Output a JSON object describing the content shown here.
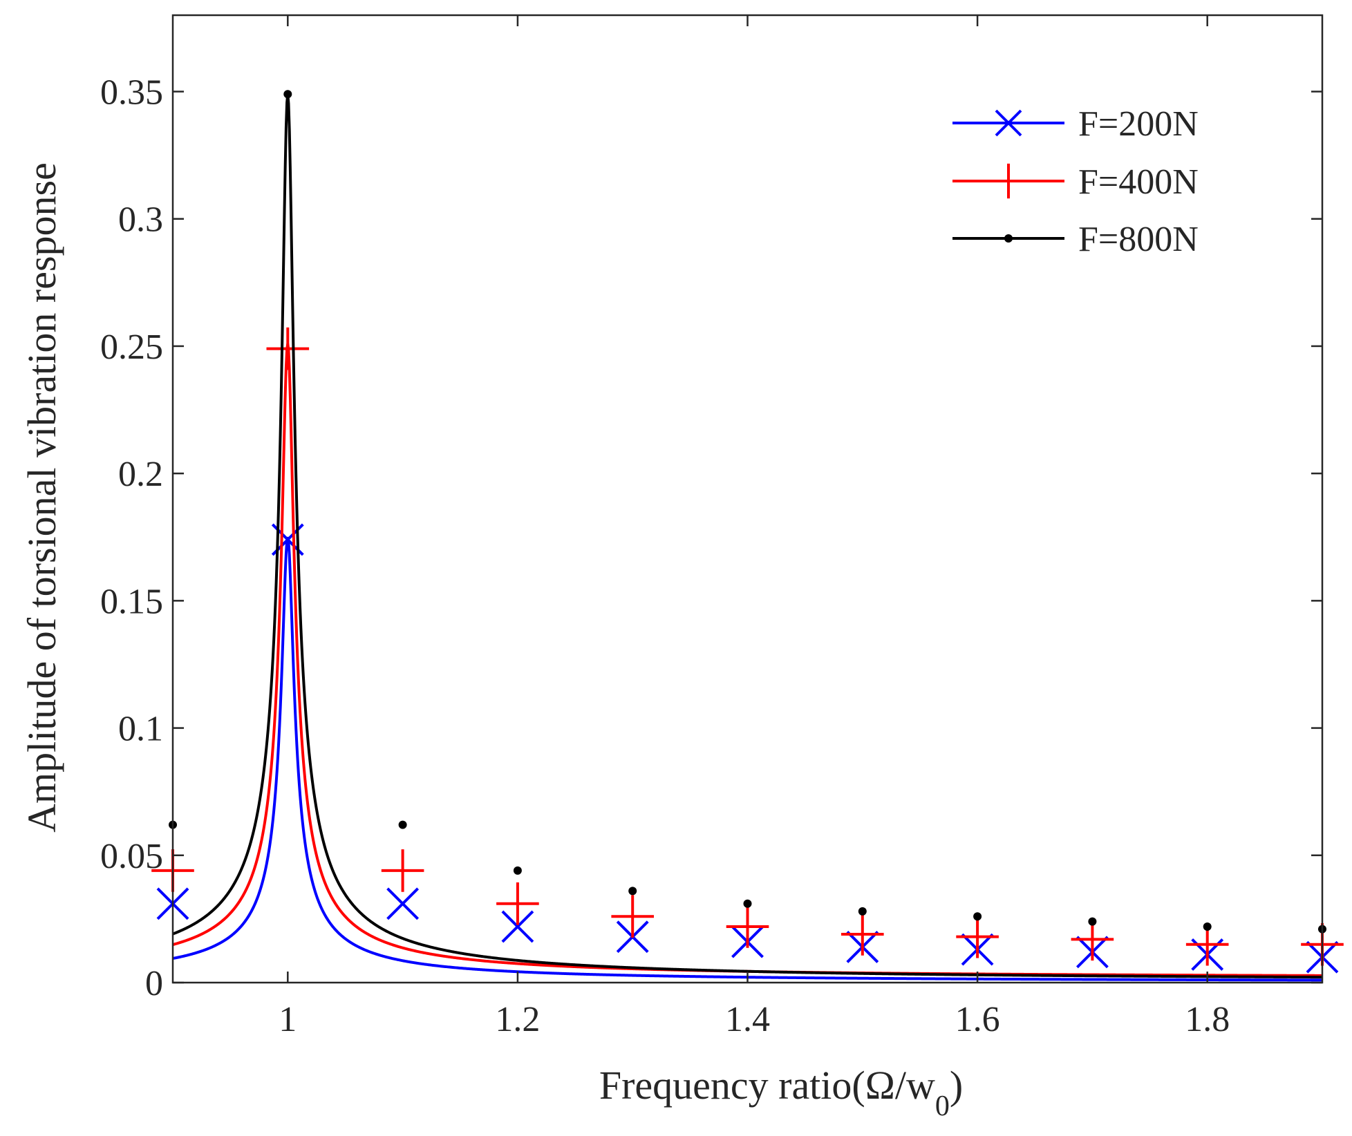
{
  "chart_data": {
    "type": "line",
    "title": "",
    "xlabel": "Frequency ratio(Ω/w",
    "xlabel_subscript": "0",
    "xlabel_suffix": ")",
    "ylabel": "Amplitude of torsional vibration response",
    "xlim": [
      0.9,
      1.9
    ],
    "ylim": [
      0,
      0.38
    ],
    "xticks": [
      1,
      1.2,
      1.4,
      1.6,
      1.8
    ],
    "xtick_labels": [
      "1",
      "1.2",
      "1.4",
      "1.6",
      "1.8"
    ],
    "yticks": [
      0,
      0.05,
      0.1,
      0.15,
      0.2,
      0.25,
      0.3,
      0.35
    ],
    "ytick_labels": [
      "0",
      "0.05",
      "0.1",
      "0.15",
      "0.2",
      "0.25",
      "0.3",
      "0.35"
    ],
    "grid": false,
    "legend_position": "top-right",
    "series": [
      {
        "name": "F=200N",
        "color": "#0000ff",
        "marker": "x",
        "peak": 0.175,
        "offset": 0.0003,
        "marker_x": [
          0.9,
          1.0,
          1.1,
          1.2,
          1.3,
          1.4,
          1.5,
          1.6,
          1.7,
          1.8,
          1.9
        ],
        "marker_y": [
          0.031,
          0.174,
          0.031,
          0.022,
          0.018,
          0.016,
          0.014,
          0.013,
          0.012,
          0.011,
          0.01
        ]
      },
      {
        "name": "F=400N",
        "color": "#ff0000",
        "marker": "+",
        "peak": 0.251,
        "offset": 0.0018,
        "marker_x": [
          0.9,
          1.0,
          1.1,
          1.2,
          1.3,
          1.4,
          1.5,
          1.6,
          1.7,
          1.8,
          1.9
        ],
        "marker_y": [
          0.044,
          0.249,
          0.044,
          0.031,
          0.026,
          0.022,
          0.019,
          0.018,
          0.017,
          0.015,
          0.015
        ]
      },
      {
        "name": "F=800N",
        "color": "#000000",
        "marker": ".",
        "peak": 0.349,
        "offset": 0.0008,
        "marker_x": [
          0.9,
          1.0,
          1.1,
          1.2,
          1.3,
          1.4,
          1.5,
          1.6,
          1.7,
          1.8,
          1.9
        ],
        "marker_y": [
          0.062,
          0.349,
          0.062,
          0.044,
          0.036,
          0.031,
          0.028,
          0.026,
          0.024,
          0.022,
          0.021
        ]
      }
    ]
  }
}
